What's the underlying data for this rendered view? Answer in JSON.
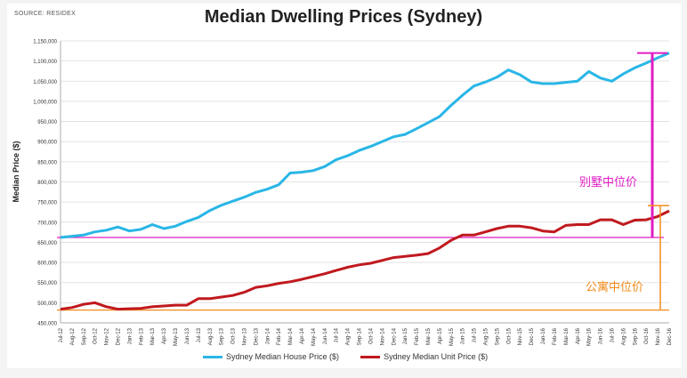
{
  "source": "SOURCE: RESIDEX",
  "colors": {
    "house": "#29b6e6",
    "unit": "#c0191e",
    "magenta": "#e01cc4",
    "orange": "#f28a1a"
  },
  "annotations": {
    "house_label": "别墅中位价",
    "unit_label": "公寓中位价"
  },
  "chart_data": {
    "type": "line",
    "title": "Median Dwelling Prices (Sydney)",
    "ylabel": "Median Price ($)",
    "xlabel": "",
    "ylim": [
      450000,
      1150000
    ],
    "yticks": [
      "450,000",
      "500,000",
      "550,000",
      "600,000",
      "650,000",
      "700,000",
      "750,000",
      "800,000",
      "850,000",
      "900,000",
      "950,000",
      "1,000,000",
      "1,050,000",
      "1,100,000",
      "1,150,000"
    ],
    "categories": [
      "Jul-12",
      "Aug-12",
      "Sep-12",
      "Oct-12",
      "Nov-12",
      "Dec-12",
      "Jan-13",
      "Feb-13",
      "Mar-13",
      "Apr-13",
      "May-13",
      "Jun-13",
      "Jul-13",
      "Aug-13",
      "Sep-13",
      "Oct-13",
      "Nov-13",
      "Dec-13",
      "Jan-14",
      "Feb-14",
      "Mar-14",
      "Apr-14",
      "May-14",
      "Jun-14",
      "Jul-14",
      "Aug-14",
      "Sep-14",
      "Oct-14",
      "Nov-14",
      "Dec-14",
      "Jan-15",
      "Feb-15",
      "Mar-15",
      "Apr-15",
      "May-15",
      "Jun-15",
      "Jul-15",
      "Aug-15",
      "Sep-15",
      "Oct-15",
      "Nov-15",
      "Dec-15",
      "Jan-16",
      "Feb-16",
      "Mar-16",
      "Apr-16",
      "May-16",
      "Jun-16",
      "Jul-16",
      "Aug-16",
      "Sep-16",
      "Oct-16",
      "Nov-16",
      "Dec-16"
    ],
    "series": [
      {
        "name": "Sydney Median House Price ($)",
        "values": [
          662000,
          665000,
          668000,
          676000,
          680000,
          688000,
          678000,
          682000,
          694000,
          684000,
          690000,
          702000,
          712000,
          729000,
          742000,
          752000,
          762000,
          774000,
          782000,
          793000,
          822000,
          824000,
          828000,
          838000,
          855000,
          865000,
          878000,
          888000,
          900000,
          912000,
          918000,
          932000,
          947000,
          962000,
          990000,
          1015000,
          1038000,
          1048000,
          1060000,
          1078000,
          1066000,
          1048000,
          1044000,
          1044000,
          1047000,
          1050000,
          1074000,
          1058000,
          1050000,
          1068000,
          1083000,
          1095000,
          1108000,
          1120000
        ]
      },
      {
        "name": "Sydney Median Unit Price ($)",
        "values": [
          484000,
          488000,
          496000,
          500000,
          490000,
          484000,
          485000,
          486000,
          490000,
          492000,
          494000,
          494000,
          510000,
          510000,
          514000,
          518000,
          526000,
          538000,
          542000,
          548000,
          552000,
          558000,
          565000,
          572000,
          580000,
          588000,
          594000,
          598000,
          605000,
          612000,
          615000,
          618000,
          622000,
          636000,
          655000,
          668000,
          668000,
          676000,
          684000,
          690000,
          690000,
          686000,
          678000,
          676000,
          692000,
          694000,
          694000,
          706000,
          706000,
          694000,
          705000,
          706000,
          714000,
          728000
        ]
      }
    ],
    "grid": true,
    "legend_position": "bottom"
  }
}
